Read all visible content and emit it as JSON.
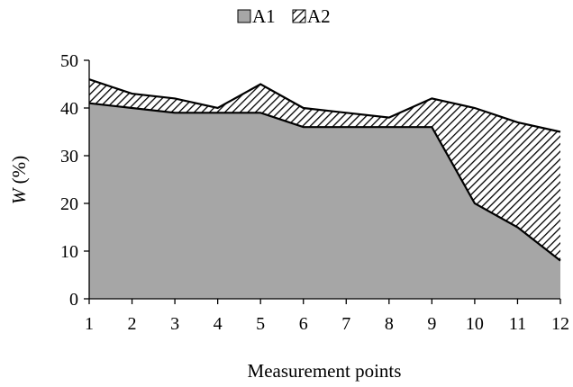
{
  "chart_data": {
    "type": "area",
    "stacked": true,
    "x": [
      1,
      2,
      3,
      4,
      5,
      6,
      7,
      8,
      9,
      10,
      11,
      12
    ],
    "series": [
      {
        "name": "A1",
        "values": [
          41,
          40,
          39,
          39,
          39,
          36,
          36,
          36,
          36,
          20,
          15,
          8
        ],
        "fill": "#a6a6a6",
        "pattern": "solid"
      },
      {
        "name": "A2",
        "values": [
          5,
          3,
          3,
          1,
          6,
          4,
          3,
          2,
          6,
          20,
          22,
          27
        ],
        "fill": "#ffffff",
        "pattern": "diagonal-hatch"
      }
    ],
    "xlabel": "Measurement points",
    "ylabel_var": "W",
    "ylabel_unit": " (%)",
    "ylim": [
      0,
      50
    ],
    "yticks": [
      0,
      10,
      20,
      30,
      40,
      50
    ],
    "xticks": [
      "1",
      "2",
      "3",
      "4",
      "5",
      "6",
      "7",
      "8",
      "9",
      "10",
      "11",
      "12"
    ],
    "grid": false,
    "legend": "top-center",
    "colors": {
      "a1_fill": "#a6a6a6",
      "hatch": "#000000",
      "line": "#000000"
    }
  }
}
